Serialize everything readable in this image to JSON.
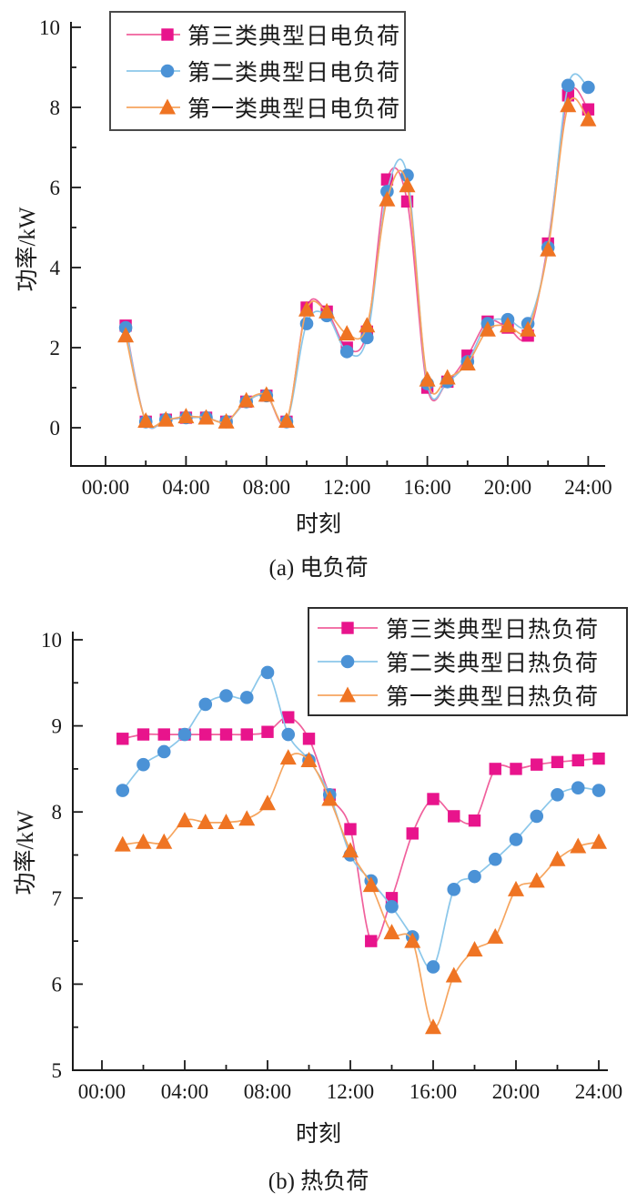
{
  "figure": {
    "background": "#ffffff",
    "axis_color": "#1a1a1a"
  },
  "chart_data": [
    {
      "type": "line",
      "caption": "(a) 电负荷",
      "xlabel": "时刻",
      "ylabel": "功率/kW",
      "legend_position": "top-left",
      "grid": false,
      "x_hours": [
        1,
        2,
        3,
        4,
        5,
        6,
        7,
        8,
        9,
        10,
        11,
        12,
        13,
        14,
        15,
        16,
        17,
        18,
        19,
        20,
        21,
        22,
        23,
        24
      ],
      "x_axis": {
        "label": "时刻",
        "ticks": [
          "00:00",
          "04:00",
          "08:00",
          "12:00",
          "16:00",
          "20:00",
          "24:00"
        ],
        "range_hours": [
          0,
          24
        ]
      },
      "y_axis": {
        "label": "功率/kW",
        "ticks": [
          "0",
          "2",
          "4",
          "6",
          "8",
          "10"
        ],
        "range": [
          0,
          10
        ]
      },
      "series": [
        {
          "name": "第三类典型日电负荷",
          "marker": "square",
          "line_color": "#f0609c",
          "marker_color": "#e8148c",
          "values": [
            2.55,
            0.15,
            0.2,
            0.25,
            0.25,
            0.15,
            0.65,
            0.8,
            0.15,
            3.0,
            2.9,
            2.0,
            2.4,
            6.2,
            5.65,
            1.0,
            1.15,
            1.8,
            2.65,
            2.5,
            2.3,
            4.6,
            8.3,
            7.95
          ]
        },
        {
          "name": "第二类典型日电负荷",
          "marker": "circle",
          "line_color": "#8bc7ea",
          "marker_color": "#4b92d6",
          "values": [
            2.5,
            0.15,
            0.2,
            0.25,
            0.25,
            0.15,
            0.65,
            0.8,
            0.15,
            2.6,
            2.8,
            1.9,
            2.25,
            5.9,
            6.3,
            1.1,
            1.15,
            1.65,
            2.6,
            2.7,
            2.6,
            4.5,
            8.55,
            8.5
          ]
        },
        {
          "name": "第一类典型日电负荷",
          "marker": "triangle",
          "line_color": "#f6a55f",
          "marker_color": "#ef7423",
          "values": [
            2.3,
            0.17,
            0.2,
            0.28,
            0.25,
            0.15,
            0.68,
            0.82,
            0.17,
            2.95,
            2.9,
            2.35,
            2.55,
            5.7,
            6.05,
            1.2,
            1.25,
            1.6,
            2.45,
            2.55,
            2.45,
            4.45,
            8.05,
            7.7
          ]
        }
      ]
    },
    {
      "type": "line",
      "caption": "(b) 热负荷",
      "xlabel": "时刻",
      "ylabel": "功率/kW",
      "legend_position": "top-right",
      "grid": false,
      "x_hours": [
        1,
        2,
        3,
        4,
        5,
        6,
        7,
        8,
        9,
        10,
        11,
        12,
        13,
        14,
        15,
        16,
        17,
        18,
        19,
        20,
        21,
        22,
        23,
        24
      ],
      "x_axis": {
        "label": "时刻",
        "ticks": [
          "00:00",
          "04:00",
          "08:00",
          "12:00",
          "16:00",
          "20:00",
          "24:00"
        ],
        "range_hours": [
          0,
          24
        ]
      },
      "y_axis": {
        "label": "功率/kW",
        "ticks": [
          "5",
          "6",
          "7",
          "8",
          "9",
          "10"
        ],
        "range": [
          5,
          10
        ]
      },
      "series": [
        {
          "name": "第三类典型日热负荷",
          "marker": "square",
          "line_color": "#f0609c",
          "marker_color": "#e8148c",
          "values": [
            8.85,
            8.9,
            8.9,
            8.9,
            8.9,
            8.9,
            8.9,
            8.93,
            9.1,
            8.85,
            8.2,
            7.8,
            6.5,
            7.0,
            7.75,
            8.15,
            7.95,
            7.9,
            8.5,
            8.5,
            8.55,
            8.58,
            8.6,
            8.62
          ]
        },
        {
          "name": "第二类典型日热负荷",
          "marker": "circle",
          "line_color": "#8bc7ea",
          "marker_color": "#4b92d6",
          "values": [
            8.25,
            8.55,
            8.7,
            8.9,
            9.25,
            9.35,
            9.33,
            9.62,
            8.9,
            8.6,
            8.2,
            7.5,
            7.2,
            6.9,
            6.55,
            6.2,
            7.1,
            7.25,
            7.45,
            7.68,
            7.95,
            8.2,
            8.28,
            8.25
          ]
        },
        {
          "name": "第一类典型日热负荷",
          "marker": "triangle",
          "line_color": "#f6a55f",
          "marker_color": "#ef7423",
          "values": [
            7.62,
            7.65,
            7.65,
            7.9,
            7.88,
            7.88,
            7.92,
            8.1,
            8.63,
            8.6,
            8.15,
            7.55,
            7.15,
            6.6,
            6.5,
            5.5,
            6.1,
            6.4,
            6.55,
            7.1,
            7.2,
            7.45,
            7.6,
            7.65
          ]
        }
      ]
    }
  ]
}
